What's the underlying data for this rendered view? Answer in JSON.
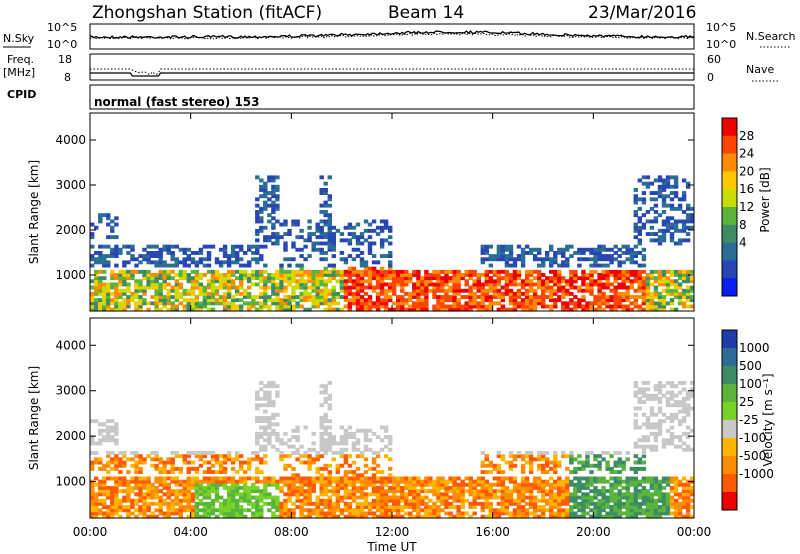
{
  "header": {
    "station": "Zhongshan Station (fitACF)",
    "beam": "Beam 14",
    "date": "23/Mar/2016"
  },
  "top_panels": {
    "nsky_label": "N.Sky",
    "nsearch_label": "N.Search",
    "noise_tick_hi": "10^5",
    "noise_tick_lo": "10^0",
    "freq_label": "Freq.",
    "freq_unit": "[MHz]",
    "freq_ticks": [
      "18",
      "8"
    ],
    "nave_ticks": [
      "60",
      "0"
    ],
    "nave_label": "Nave",
    "cpid_label": "CPID",
    "cpid_text": "normal (fast stereo) 153"
  },
  "chart_data": [
    {
      "type": "heatmap",
      "name": "power",
      "ylabel": "Slant Range [km]",
      "yticks": [
        1000,
        2000,
        3000,
        4000
      ],
      "ylim": [
        200,
        4600
      ],
      "xticks": [
        "00:00",
        "04:00",
        "08:00",
        "12:00",
        "16:00",
        "20:00",
        "00:00"
      ],
      "xlim_hours": [
        0,
        24
      ],
      "colorbar": {
        "label": "Power [dB]",
        "ticks": [
          "28",
          "24",
          "20",
          "16",
          "12",
          "8",
          "4"
        ],
        "colors": [
          "#ee0000",
          "#ff4500",
          "#ff8c00",
          "#ffc800",
          "#c8dc00",
          "#5ab43c",
          "#3c8c64",
          "#2a6e96",
          "#2846b4",
          "#0a1ef0"
        ]
      }
    },
    {
      "type": "heatmap",
      "name": "velocity",
      "ylabel": "Slant Range [km]",
      "yticks": [
        1000,
        2000,
        3000,
        4000
      ],
      "ylim": [
        200,
        4600
      ],
      "xticks": [
        "00:00",
        "04:00",
        "08:00",
        "12:00",
        "16:00",
        "20:00",
        "00:00"
      ],
      "xlim_hours": [
        0,
        24
      ],
      "xlabel": "Time UT",
      "colorbar": {
        "label": "Velocity [m s⁻¹]",
        "ticks": [
          "1000",
          "500",
          "100",
          "25",
          "-25",
          "-100",
          "-500",
          "-1000"
        ],
        "colors": [
          "#1e3caa",
          "#2a6e96",
          "#3c8c64",
          "#5ab43c",
          "#78d228",
          "#c8c8c8",
          "#ffb400",
          "#ff8c00",
          "#ff5a00",
          "#ee0000"
        ]
      }
    }
  ]
}
